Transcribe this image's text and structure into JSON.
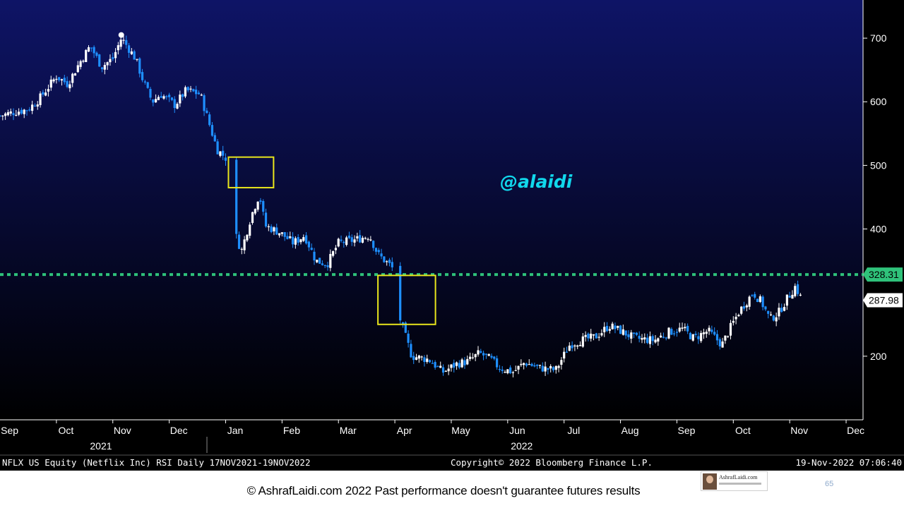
{
  "colors": {
    "background_top": "#0e1466",
    "background_bottom": "#000000",
    "up_candle": "#ffffff",
    "down_candle": "#1e8fff",
    "level_line": "#2fc27a",
    "highlight_box": "#e8e51c",
    "handle": "#11d8ec"
  },
  "handle": "@alaidi",
  "footer": {
    "left": "NFLX US Equity (Netflix Inc) RSI  Daily 17NOV2021-19NOV2022",
    "center": "Copyright© 2022 Bloomberg Finance L.P.",
    "right": "19-Nov-2022 07:06:40"
  },
  "copyright": "© AshrafLaidi.com 2022 Past performance doesn't guarantee futures results",
  "logo_text": "AshrafLaidi.com",
  "page_number": "65",
  "chart_data": {
    "type": "candlestick",
    "title": "",
    "y_ticks": [
      "200",
      "400",
      "500",
      "600",
      "700"
    ],
    "y_tick_values": [
      200,
      400,
      500,
      600,
      700
    ],
    "ylim": [
      100,
      760
    ],
    "x_months": [
      "Sep",
      "Oct",
      "Nov",
      "Dec",
      "Jan",
      "Feb",
      "Mar",
      "Apr",
      "May",
      "Jun",
      "Jul",
      "Aug",
      "Sep",
      "Oct",
      "Nov",
      "Dec"
    ],
    "x_years": [
      "2021",
      "2022"
    ],
    "xlim": [
      0,
      15.3
    ],
    "level_line": {
      "value": 328.31,
      "label": "328.31",
      "style": "dotted"
    },
    "last_price": {
      "value": 287.98,
      "label": "287.98"
    },
    "highlight_boxes": [
      {
        "x": [
          4.05,
          4.85
        ],
        "y": [
          465,
          513
        ]
      },
      {
        "x": [
          6.7,
          7.72
        ],
        "y": [
          250,
          327
        ]
      }
    ],
    "price_anchors": [
      [
        0.0,
        578
      ],
      [
        0.3,
        585
      ],
      [
        0.5,
        588
      ],
      [
        0.7,
        605
      ],
      [
        1.0,
        640
      ],
      [
        1.2,
        628
      ],
      [
        1.4,
        660
      ],
      [
        1.6,
        688
      ],
      [
        1.8,
        655
      ],
      [
        2.0,
        668
      ],
      [
        2.15,
        700
      ],
      [
        2.25,
        688
      ],
      [
        2.4,
        668
      ],
      [
        2.55,
        630
      ],
      [
        2.7,
        600
      ],
      [
        2.85,
        612
      ],
      [
        3.1,
        595
      ],
      [
        3.3,
        618
      ],
      [
        3.55,
        612
      ],
      [
        3.7,
        568
      ],
      [
        3.85,
        525
      ],
      [
        4.0,
        512
      ],
      [
        4.18,
        390
      ],
      [
        4.28,
        365
      ],
      [
        4.45,
        420
      ],
      [
        4.6,
        455
      ],
      [
        4.7,
        405
      ],
      [
        4.95,
        395
      ],
      [
        5.2,
        378
      ],
      [
        5.4,
        390
      ],
      [
        5.6,
        350
      ],
      [
        5.8,
        345
      ],
      [
        6.0,
        378
      ],
      [
        6.3,
        383
      ],
      [
        6.55,
        390
      ],
      [
        6.7,
        360
      ],
      [
        6.95,
        340
      ],
      [
        7.1,
        255
      ],
      [
        7.3,
        200
      ],
      [
        7.6,
        195
      ],
      [
        7.85,
        175
      ],
      [
        8.1,
        188
      ],
      [
        8.3,
        192
      ],
      [
        8.5,
        205
      ],
      [
        8.7,
        195
      ],
      [
        8.85,
        182
      ],
      [
        9.1,
        175
      ],
      [
        9.3,
        190
      ],
      [
        9.55,
        182
      ],
      [
        9.85,
        178
      ],
      [
        10.1,
        218
      ],
      [
        10.3,
        225
      ],
      [
        10.55,
        230
      ],
      [
        10.8,
        248
      ],
      [
        11.0,
        240
      ],
      [
        11.25,
        228
      ],
      [
        11.6,
        225
      ],
      [
        11.85,
        238
      ],
      [
        12.1,
        243
      ],
      [
        12.3,
        228
      ],
      [
        12.55,
        240
      ],
      [
        12.8,
        218
      ],
      [
        12.95,
        245
      ],
      [
        13.1,
        270
      ],
      [
        13.35,
        300
      ],
      [
        13.5,
        285
      ],
      [
        13.65,
        258
      ],
      [
        13.8,
        268
      ],
      [
        13.95,
        290
      ],
      [
        14.1,
        310
      ],
      [
        14.22,
        288
      ]
    ]
  }
}
